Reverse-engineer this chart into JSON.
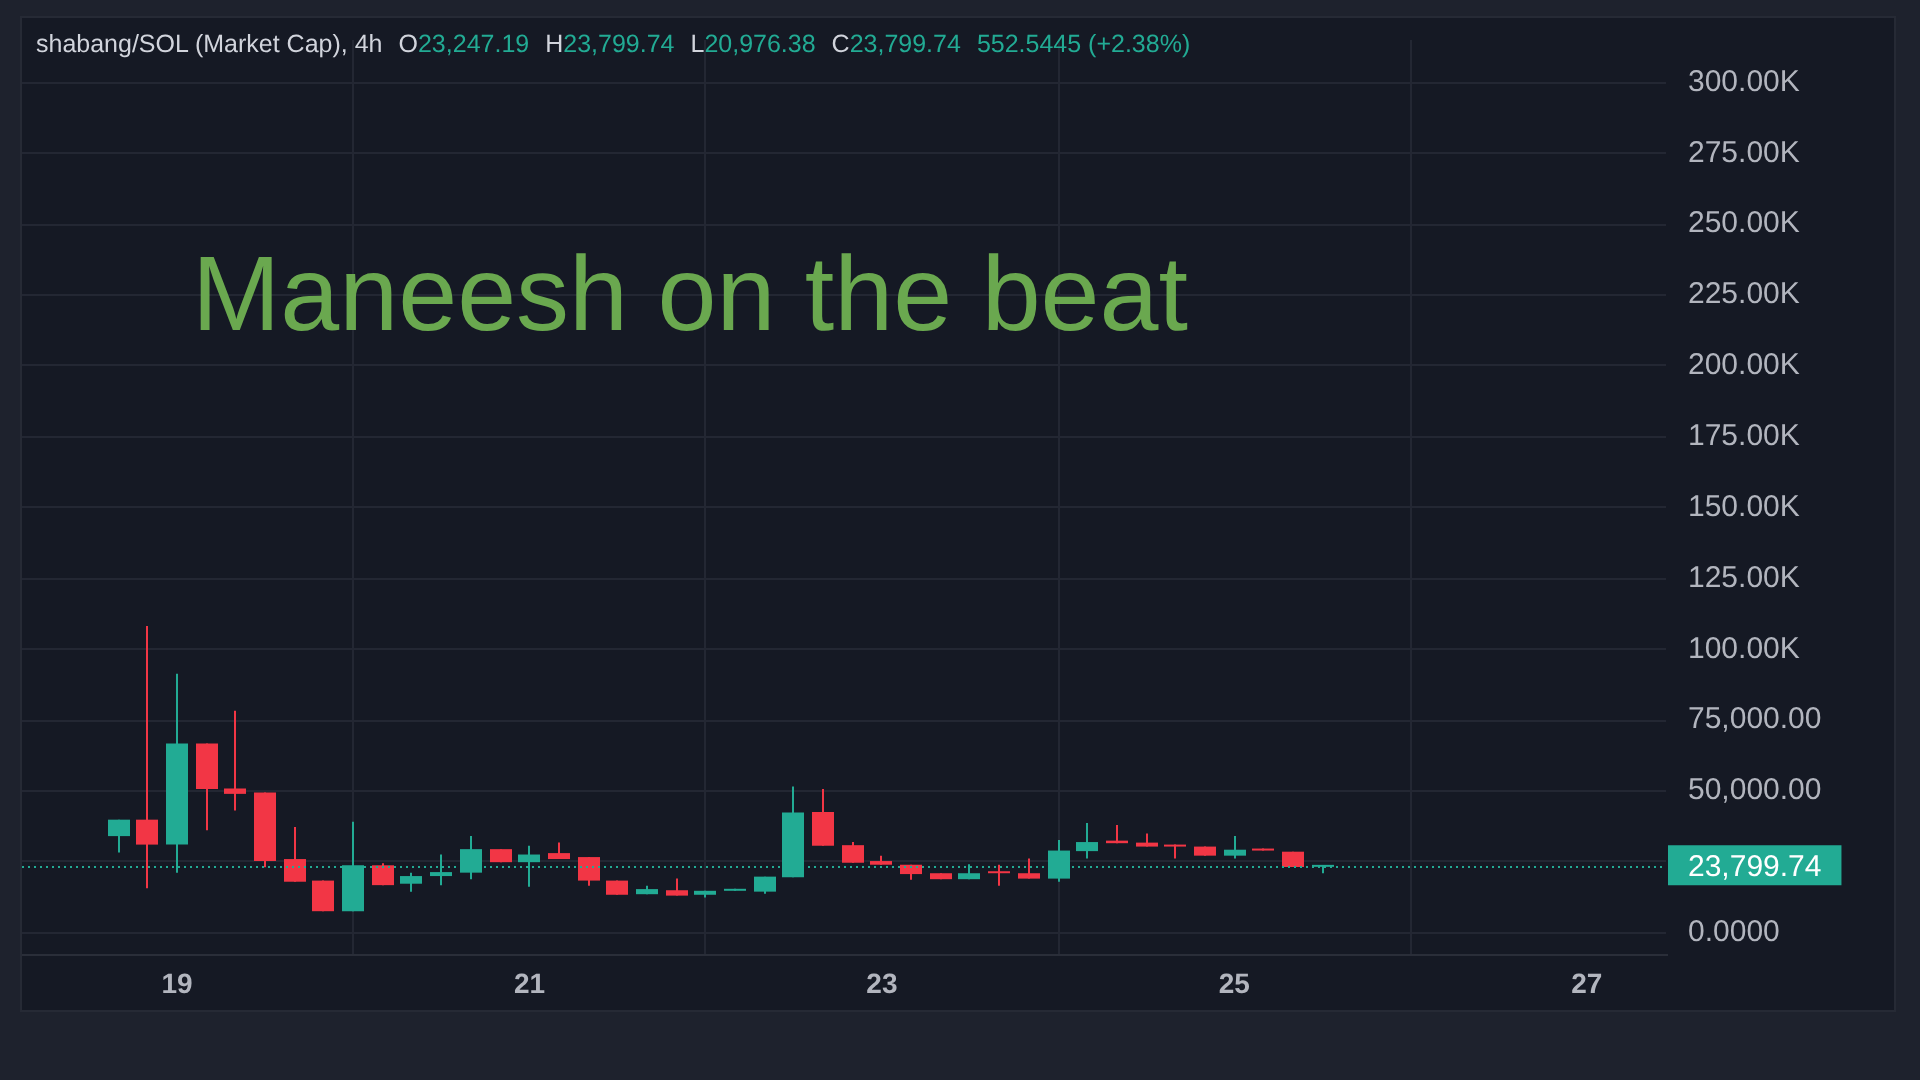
{
  "chart_data": {
    "type": "candlestick",
    "title": "shabang/SOL (Market Cap), 4h",
    "annotations": [
      "O23,247.19",
      "H23,799.74",
      "L20,976.38",
      "C23,799.74",
      "552.5445 (+2.38%)",
      "Maneesh on the beat"
    ],
    "x": [
      18.667,
      18.833,
      19.0,
      19.167,
      19.333,
      19.5,
      19.667,
      19.833,
      20.0,
      20.167,
      20.333,
      20.5,
      20.667,
      20.833,
      21.0,
      21.167,
      21.333,
      21.5,
      21.667,
      21.833,
      22.0,
      22.167,
      22.333,
      22.5,
      22.667,
      22.833,
      23.0,
      23.167,
      23.333,
      23.5,
      23.667,
      23.833,
      24.0,
      24.167,
      24.333,
      24.5,
      24.667,
      24.833,
      25.0,
      25.167,
      25.333,
      25.5
    ],
    "ohlc": [
      [
        34100,
        39900,
        28300,
        39900
      ],
      [
        39900,
        108200,
        15700,
        31100
      ],
      [
        31100,
        91400,
        21200,
        66800
      ],
      [
        66800,
        66800,
        36200,
        50700
      ],
      [
        50900,
        78300,
        43100,
        49000
      ],
      [
        49500,
        49500,
        23100,
        25300
      ],
      [
        26000,
        37300,
        18000,
        18000
      ],
      [
        18400,
        18400,
        7600,
        7600
      ],
      [
        7600,
        39200,
        7600,
        23800
      ],
      [
        23800,
        24500,
        16800,
        16800
      ],
      [
        17300,
        21200,
        14500,
        20000
      ],
      [
        20000,
        27600,
        16800,
        21400
      ],
      [
        21200,
        34100,
        18900,
        29500
      ],
      [
        29500,
        29500,
        24900,
        24900
      ],
      [
        24900,
        30700,
        16200,
        27600
      ],
      [
        28100,
        31800,
        26000,
        26000
      ],
      [
        26700,
        26700,
        16600,
        18400
      ],
      [
        18400,
        18400,
        13400,
        13400
      ],
      [
        13600,
        16600,
        13600,
        15400
      ],
      [
        15000,
        19100,
        13100,
        13100
      ],
      [
        13400,
        14800,
        12400,
        14800
      ],
      [
        14800,
        15500,
        14800,
        15500
      ],
      [
        14500,
        19800,
        13800,
        19800
      ],
      [
        19600,
        51600,
        19600,
        42400
      ],
      [
        42600,
        50700,
        30700,
        30700
      ],
      [
        30900,
        32000,
        24700,
        24700
      ],
      [
        25300,
        27200,
        24000,
        24000
      ],
      [
        24000,
        24000,
        18700,
        20700
      ],
      [
        21000,
        21000,
        18900,
        18900
      ],
      [
        18900,
        24200,
        18900,
        21000
      ],
      [
        21700,
        24000,
        16600,
        21000
      ],
      [
        21000,
        26200,
        19100,
        19100
      ],
      [
        19100,
        32700,
        18000,
        29000
      ],
      [
        28800,
        38700,
        26200,
        32000
      ],
      [
        32500,
        38000,
        31600,
        31600
      ],
      [
        31800,
        35000,
        30400,
        30400
      ],
      [
        31100,
        31100,
        26200,
        30400
      ],
      [
        30400,
        30400,
        27200,
        27200
      ],
      [
        27200,
        34100,
        26200,
        29300
      ],
      [
        29500,
        29500,
        29000,
        29000
      ],
      [
        28600,
        28600,
        23200,
        23200
      ],
      [
        23247.19,
        23799.74,
        20976.38,
        23799.74
      ]
    ],
    "colors": [
      "#22ab94",
      "#f23645",
      "#22ab94",
      "#f23645",
      "#f23645",
      "#f23645",
      "#f23645",
      "#f23645",
      "#22ab94",
      "#f23645",
      "#22ab94",
      "#22ab94",
      "#22ab94",
      "#f23645",
      "#22ab94",
      "#f23645",
      "#f23645",
      "#f23645",
      "#22ab94",
      "#f23645",
      "#22ab94",
      "#22ab94",
      "#22ab94",
      "#22ab94",
      "#f23645",
      "#f23645",
      "#f23645",
      "#f23645",
      "#f23645",
      "#22ab94",
      "#f23645",
      "#f23645",
      "#22ab94",
      "#22ab94",
      "#f23645",
      "#f23645",
      "#f23645",
      "#f23645",
      "#22ab94",
      "#f23645",
      "#f23645",
      "#22ab94"
    ],
    "xlim": [
      18.12,
      27.45
    ],
    "xticks": [
      19,
      21,
      23,
      25,
      27
    ],
    "ylim": [
      -7500,
      315000
    ],
    "yticks": [
      {
        "value": 0,
        "label": "0.0000"
      },
      {
        "value": 25000,
        "label": null
      },
      {
        "value": 50000,
        "label": "50,000.00"
      },
      {
        "value": 75000,
        "label": "75,000.00"
      },
      {
        "value": 100000,
        "label": "100.00K"
      },
      {
        "value": 125000,
        "label": "125.00K"
      },
      {
        "value": 150000,
        "label": "150.00K"
      },
      {
        "value": 175000,
        "label": "175.00K"
      },
      {
        "value": 200000,
        "label": "200.00K"
      },
      {
        "value": 225000,
        "label": "225.00K"
      },
      {
        "value": 250000,
        "label": "250.00K"
      },
      {
        "value": 275000,
        "label": "275.00K"
      },
      {
        "value": 300000,
        "label": "300.00K"
      }
    ],
    "grid": true,
    "ref_lines": [
      {
        "axis": "y",
        "value": 23799.74,
        "label": "23,799.74",
        "color": "#22ab94",
        "line_style": "dotted"
      }
    ]
  }
}
